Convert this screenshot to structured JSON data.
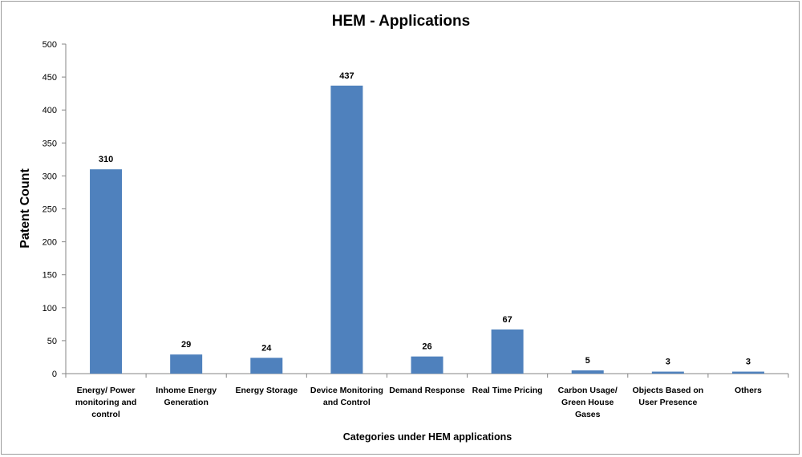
{
  "chart_data": {
    "type": "bar",
    "title": "HEM - Applications",
    "xlabel": "Categories under HEM applications",
    "ylabel": "Patent Count",
    "ylim": [
      0,
      500
    ],
    "ytick_step": 50,
    "grid": false,
    "legend": "none",
    "bar_color": "#4f81bd",
    "categories": [
      [
        "Energy/ Power",
        "monitoring and",
        "control"
      ],
      [
        "Inhome Energy",
        "Generation"
      ],
      [
        "Energy Storage"
      ],
      [
        "Device Monitoring",
        "and Control"
      ],
      [
        "Demand Response"
      ],
      [
        "Real Time Pricing"
      ],
      [
        "Carbon Usage/",
        "Green House",
        "Gases"
      ],
      [
        "Objects Based on",
        "User Presence"
      ],
      [
        "Others"
      ]
    ],
    "values": [
      310,
      29,
      24,
      437,
      26,
      67,
      5,
      3,
      3
    ]
  }
}
